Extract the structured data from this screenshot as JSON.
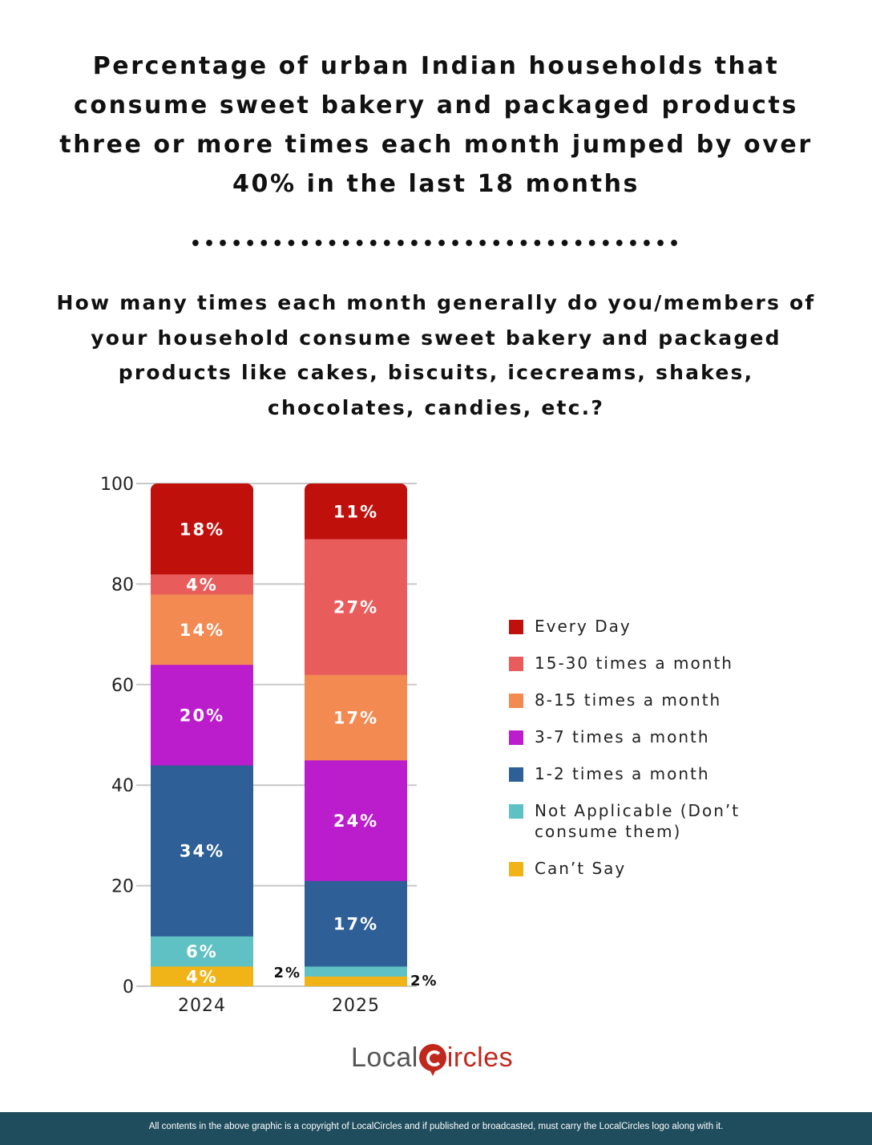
{
  "title": "Percentage of urban Indian households that consume sweet bakery and packaged products three or more times each month jumped by over 40% in the last 18 months",
  "separator": "••••••••••••••••••••••••••••••••••••",
  "question": "How many times each month generally do you/members of your household consume sweet bakery and packaged products like cakes, biscuits, icecreams, shakes, chocolates, candies, etc.?",
  "chart_data": {
    "type": "bar",
    "stacked": true,
    "categories": [
      "2024",
      "2025"
    ],
    "ylim": [
      0,
      100
    ],
    "yticks": [
      0,
      20,
      40,
      60,
      80,
      100
    ],
    "grid": true,
    "legend_position": "right",
    "series": [
      {
        "name": "Can't Say",
        "color": "#f0b418",
        "values": [
          4,
          2
        ],
        "labels": [
          "4%",
          "2%"
        ]
      },
      {
        "name": "Not Applicable (Don't consume them)",
        "color": "#5fc1c3",
        "values": [
          6,
          2
        ],
        "labels": [
          "6%",
          "2%"
        ]
      },
      {
        "name": "1-2 times a month",
        "color": "#2e5f96",
        "values": [
          34,
          17
        ],
        "labels": [
          "34%",
          "17%"
        ]
      },
      {
        "name": "3-7 times a month",
        "color": "#bb1ccc",
        "values": [
          20,
          24
        ],
        "labels": [
          "20%",
          "24%"
        ]
      },
      {
        "name": "8-15 times a month",
        "color": "#f28a52",
        "values": [
          14,
          17
        ],
        "labels": [
          "14%",
          "17%"
        ]
      },
      {
        "name": "15-30 times a month",
        "color": "#e95c5c",
        "values": [
          4,
          27
        ],
        "labels": [
          "4%",
          "27%"
        ]
      },
      {
        "name": "Every Day",
        "color": "#c0100c",
        "values": [
          18,
          11
        ],
        "labels": [
          "18%",
          "11%"
        ]
      }
    ]
  },
  "legend": [
    {
      "label": "Every Day",
      "color": "#c0100c"
    },
    {
      "label": "15-30 times a month",
      "color": "#e95c5c"
    },
    {
      "label": "8-15 times a month",
      "color": "#f28a52"
    },
    {
      "label": "3-7 times a month",
      "color": "#bb1ccc"
    },
    {
      "label": "1-2 times a month",
      "color": "#2e5f96"
    },
    {
      "label": "Not Applicable (Don’t consume them)",
      "color": "#5fc1c3"
    },
    {
      "label": "Can’t Say",
      "color": "#f0b418"
    }
  ],
  "logo": {
    "part1": "Local",
    "part2": "ircles"
  },
  "footer": "All contents in the above graphic is a copyright of LocalCircles and if published or broadcasted, must carry the LocalCircles logo along with it."
}
